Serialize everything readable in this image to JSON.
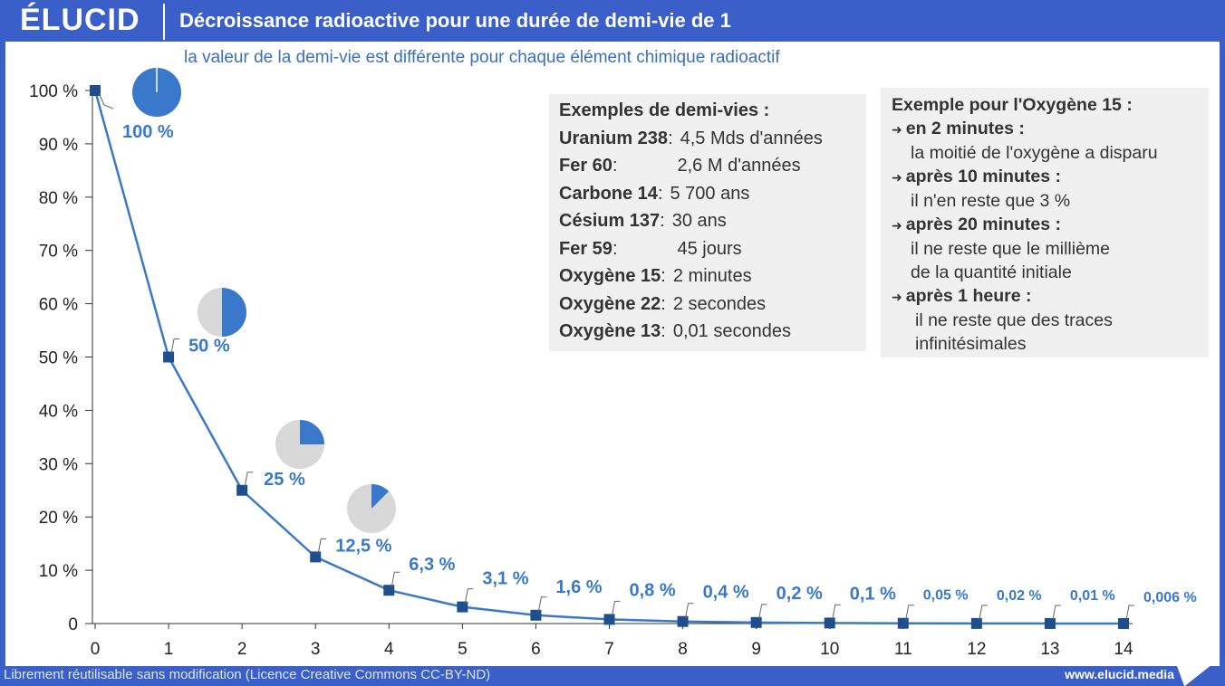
{
  "header": {
    "logo": "ÉLUCID",
    "title": "Décroissance radioactive pour une durée de demi-vie de 1"
  },
  "subtitle": "la valeur de la demi-vie est différente pour chaque élément chimique radioactif",
  "footer": {
    "license": "Librement réutilisable sans modification (Licence Creative Commons CC-BY-ND)",
    "site": "www.elucid.media"
  },
  "examples_box": {
    "heading": "Exemples de demi-vies :",
    "rows": [
      {
        "name": "Uranium 238",
        "sep": " : ",
        "value": "4,5 Mds d'années"
      },
      {
        "name": "Fer 60",
        "sep": " :",
        "value": "2,6 M d'années"
      },
      {
        "name": "Carbone 14",
        "sep": " :",
        "value": "5 700 ans"
      },
      {
        "name": "Césium 137",
        "sep": " :",
        "value": "30 ans"
      },
      {
        "name": "Fer 59",
        "sep": " :",
        "value": "45 jours"
      },
      {
        "name": "Oxygène 15",
        "sep": " :",
        "value": "2 minutes"
      },
      {
        "name": "Oxygène 22",
        "sep": " :",
        "value": "2 secondes"
      },
      {
        "name": "Oxygène 13",
        "sep": " :",
        "value": "0,01 secondes"
      }
    ]
  },
  "oxygen_box": {
    "heading": "Exemple pour l'Oxygène 15 :",
    "items": [
      {
        "title": "en 2 minutes :",
        "lines": [
          "la moitié de l'oxygène a disparu"
        ]
      },
      {
        "title": "après 10 minutes :",
        "lines": [
          "il n'en reste que 3 %"
        ]
      },
      {
        "title": "après 20 minutes :",
        "lines": [
          "il ne reste que le millième",
          "de la quantité initiale"
        ]
      },
      {
        "title": "après 1 heure :",
        "lines": [
          "il ne reste que des traces",
          "infinitésimales"
        ]
      }
    ]
  },
  "chart_data": {
    "type": "line",
    "title": "Décroissance radioactive pour une durée de demi-vie de 1",
    "x": [
      0,
      1,
      2,
      3,
      4,
      5,
      6,
      7,
      8,
      9,
      10,
      11,
      12,
      13,
      14
    ],
    "series": [
      {
        "values": [
          100,
          50,
          25,
          12.5,
          6.25,
          3.125,
          1.5625,
          0.78,
          0.39,
          0.2,
          0.1,
          0.05,
          0.02,
          0.01,
          0.006
        ]
      }
    ],
    "data_labels": [
      "100 %",
      "50 %",
      "25 %",
      "12,5 %",
      "6,3 %",
      "3,1 %",
      "1,6 %",
      "0,8 %",
      "0,4 %",
      "0,2 %",
      "0,1 %",
      "0,05 %",
      "0,02 %",
      "0,01 %",
      "0,006 %"
    ],
    "x_ticks": [
      "0",
      "1",
      "2",
      "3",
      "4",
      "5",
      "6",
      "7",
      "8",
      "9",
      "10",
      "11",
      "12",
      "13",
      "14"
    ],
    "y_ticks": [
      "0",
      "10 %",
      "20 %",
      "30 %",
      "40 %",
      "50 %",
      "60 %",
      "70 %",
      "80 %",
      "90 %",
      "100 %"
    ],
    "ylim": [
      0,
      100
    ],
    "xlim": [
      0,
      14
    ],
    "pie_fractions": [
      1,
      0.5,
      0.25,
      0.125
    ],
    "colors": {
      "line": "#3a78cc",
      "marker": "#1f4e8c",
      "label": "#3a78cc",
      "pie_fill": "#3a78cc",
      "pie_rest": "#d8d8d8",
      "axis": "#333333"
    }
  }
}
